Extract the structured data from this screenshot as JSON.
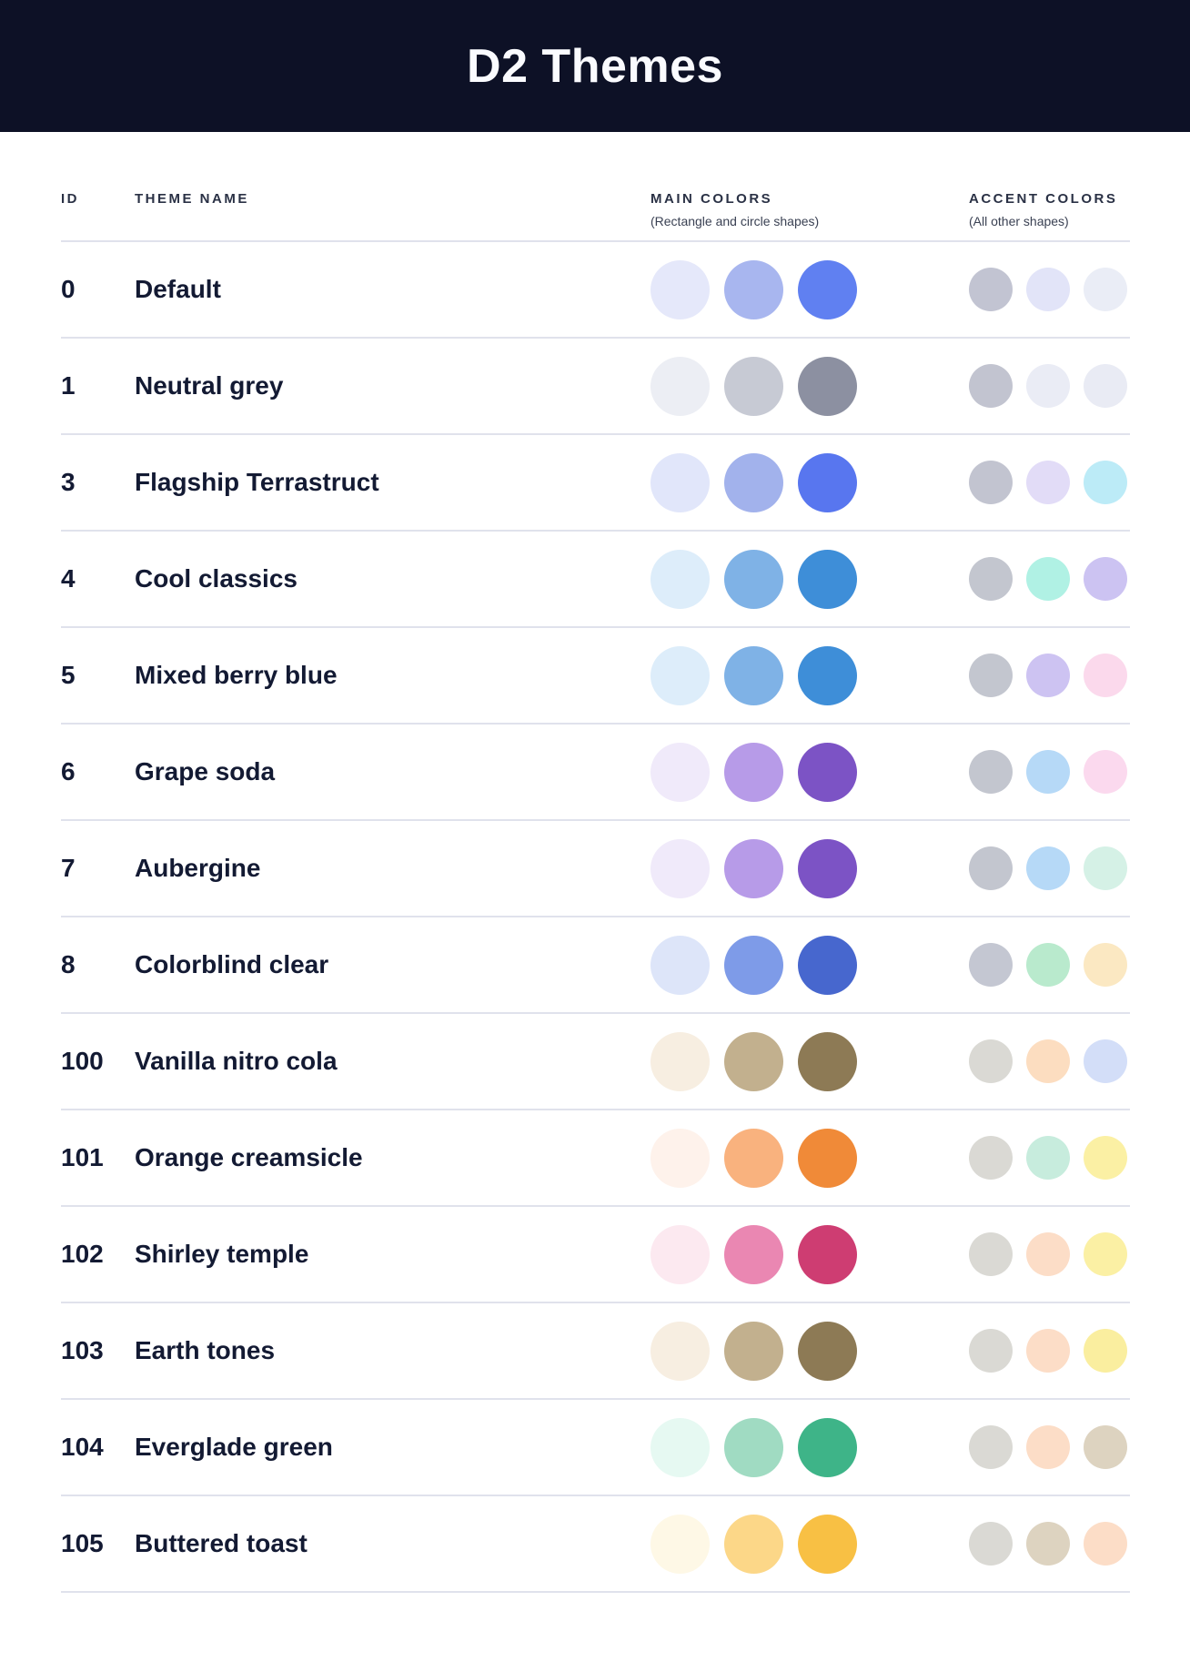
{
  "header": {
    "title": "D2 Themes"
  },
  "style": {
    "header_bg": "#0D1126",
    "header_text": "#FAFBFF",
    "row_text": "#131A33",
    "column_label_text": "#2A3145",
    "separator": "#E0E2EC"
  },
  "table": {
    "columns": {
      "id_label": "ID",
      "name_label": "THEME NAME",
      "main_label": "MAIN COLORS",
      "main_sub": "(Rectangle and circle shapes)",
      "accent_label": "ACCENT COLORS",
      "accent_sub": "(All other shapes)"
    },
    "rows": [
      {
        "id": "0",
        "name": "Default",
        "main": [
          "#E5E8FA",
          "#A8B6EF",
          "#6080F1"
        ],
        "accent": [
          "#C2C4D2",
          "#E2E4F8",
          "#EAEDF6"
        ]
      },
      {
        "id": "1",
        "name": "Neutral grey",
        "main": [
          "#ECEEF4",
          "#C7CAD4",
          "#8C90A1"
        ],
        "accent": [
          "#C2C4D0",
          "#EAECF5",
          "#E9EBF4"
        ]
      },
      {
        "id": "3",
        "name": "Flagship Terrastruct",
        "main": [
          "#E1E6FA",
          "#A2B2EC",
          "#5876EF"
        ],
        "accent": [
          "#C2C4D0",
          "#E2DCF7",
          "#BCEBF7"
        ]
      },
      {
        "id": "4",
        "name": "Cool classics",
        "main": [
          "#DDEDFA",
          "#7FB2E6",
          "#3E8ED8"
        ],
        "accent": [
          "#C3C6CF",
          "#B0F1E4",
          "#CCC3F2"
        ]
      },
      {
        "id": "5",
        "name": "Mixed berry blue",
        "main": [
          "#DDEDFA",
          "#7FB2E6",
          "#3E8ED8"
        ],
        "accent": [
          "#C3C6CF",
          "#CDC3F2",
          "#FBD9EC"
        ]
      },
      {
        "id": "6",
        "name": "Grape soda",
        "main": [
          "#F0EAFA",
          "#B79BE8",
          "#7C53C5"
        ],
        "accent": [
          "#C3C6CF",
          "#B6D9F7",
          "#FBD9EE"
        ]
      },
      {
        "id": "7",
        "name": "Aubergine",
        "main": [
          "#F0EAFA",
          "#B79BE8",
          "#7C53C5"
        ],
        "accent": [
          "#C3C6CF",
          "#B6D9F7",
          "#D5F1E6"
        ]
      },
      {
        "id": "8",
        "name": "Colorblind clear",
        "main": [
          "#DDE5F9",
          "#7E9BE8",
          "#4767CE"
        ],
        "accent": [
          "#C4C7D2",
          "#B9EACD",
          "#FBE8C2"
        ]
      },
      {
        "id": "100",
        "name": "Vanilla nitro cola",
        "main": [
          "#F7EEE1",
          "#C2B08E",
          "#8D7A55"
        ],
        "accent": [
          "#DAD9D4",
          "#FCDDC0",
          "#D3DEF8"
        ]
      },
      {
        "id": "101",
        "name": "Orange creamsicle",
        "main": [
          "#FEF2EB",
          "#F9B27E",
          "#F08A38"
        ],
        "accent": [
          "#DAD9D4",
          "#C7ECDD",
          "#FBF0A4"
        ]
      },
      {
        "id": "102",
        "name": "Shirley temple",
        "main": [
          "#FCE9F0",
          "#EA87B2",
          "#CE3D72"
        ],
        "accent": [
          "#DAD9D4",
          "#FCDDC7",
          "#FBF0A4"
        ]
      },
      {
        "id": "103",
        "name": "Earth tones",
        "main": [
          "#F7EEE1",
          "#C2B08E",
          "#8D7A55"
        ],
        "accent": [
          "#DAD9D4",
          "#FCDDC7",
          "#FAEE9F"
        ]
      },
      {
        "id": "104",
        "name": "Everglade green",
        "main": [
          "#E6F9F2",
          "#A0DBC2",
          "#3EB488"
        ],
        "accent": [
          "#DAD9D4",
          "#FCDDC7",
          "#DDD3C0"
        ]
      },
      {
        "id": "105",
        "name": "Buttered toast",
        "main": [
          "#FEF8E6",
          "#FCD788",
          "#F8C044"
        ],
        "accent": [
          "#DAD9D4",
          "#DDD3C0",
          "#FCDDC7"
        ]
      }
    ]
  }
}
